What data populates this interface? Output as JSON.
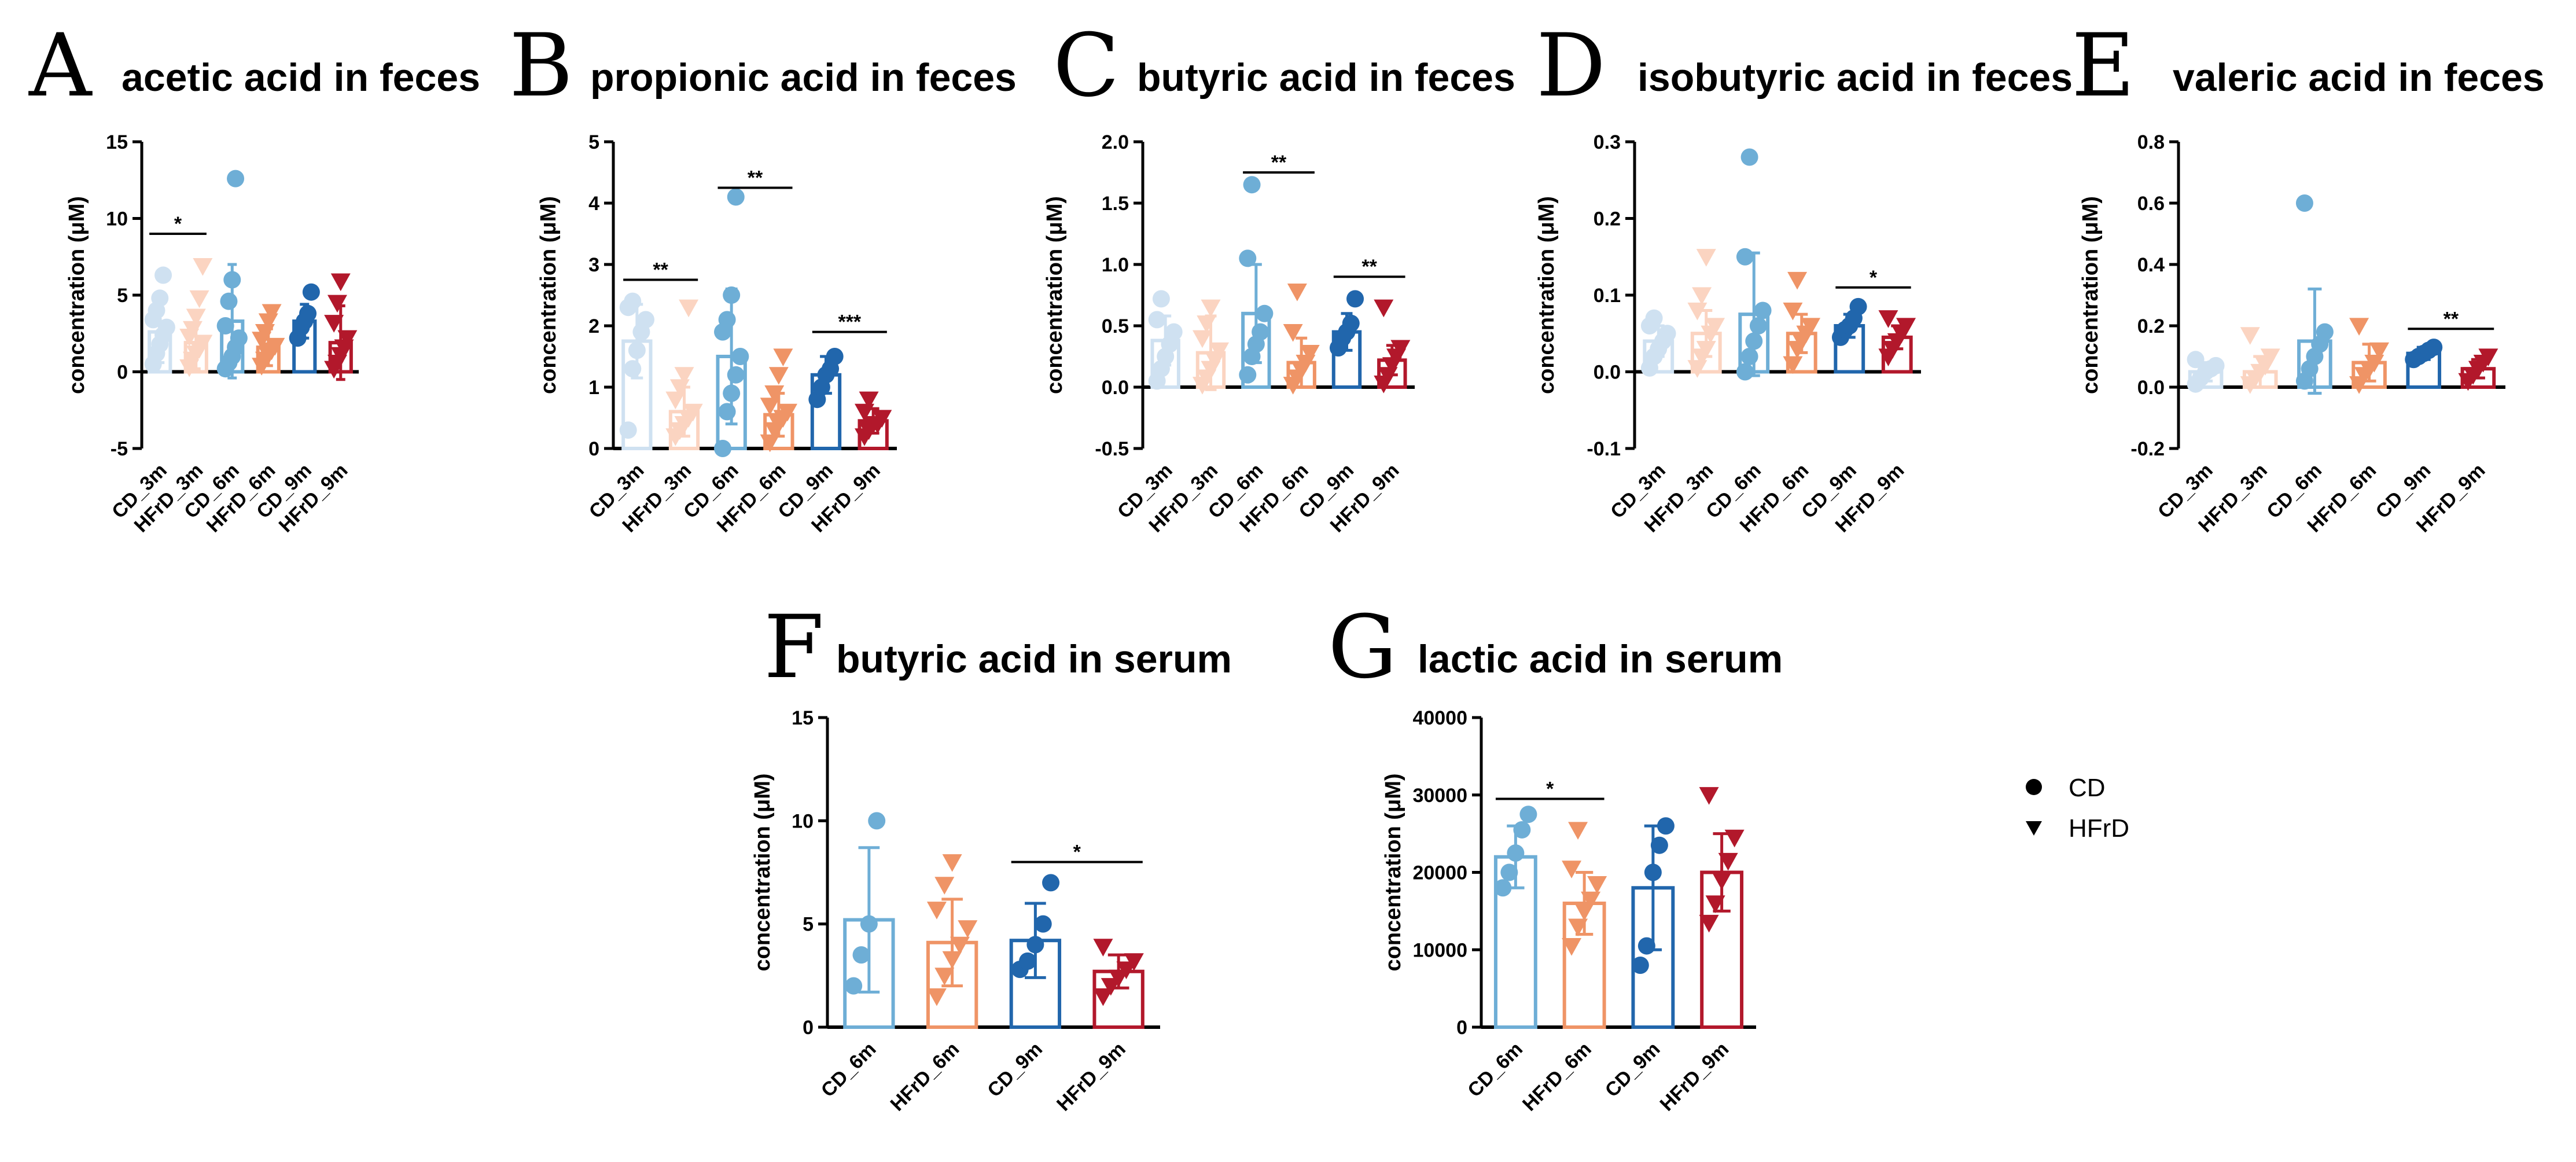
{
  "colors": {
    "CD_3m": "#cfe1f1",
    "HFrD_3m": "#fbd4c1",
    "CD_6m": "#6eaed6",
    "HFrD_6m": "#ef9466",
    "CD_9m": "#2166ac",
    "HFrD_9m": "#b2182b"
  },
  "legend": [
    {
      "label": "CD",
      "marker": "circle"
    },
    {
      "label": "HFrD",
      "marker": "triangle-down"
    }
  ],
  "chart_data": [
    {
      "type": "bar",
      "letter": "A",
      "title": "acetic acid in feces",
      "ylabel": "concentration (μM)",
      "ylim": [
        -5,
        15
      ],
      "yticks": [
        -5,
        0,
        5,
        10,
        15
      ],
      "ytick_labels": [
        "-5",
        "0",
        "5",
        "10",
        "15"
      ],
      "categories": [
        "CD_3m",
        "HFrD_3m",
        "CD_6m",
        "HFrD_6m",
        "CD_9m",
        "HFrD_9m"
      ],
      "values": [
        2.6,
        1.9,
        3.3,
        1.6,
        3.3,
        1.9
      ],
      "sd": [
        2.0,
        1.7,
        3.7,
        1.2,
        1.1,
        2.4
      ],
      "points": [
        [
          0.5,
          1.2,
          1.8,
          2.4,
          2.9,
          3.4,
          4.0,
          4.8,
          6.3
        ],
        [
          0.3,
          0.8,
          1.2,
          1.5,
          1.9,
          2.3,
          2.8,
          3.6,
          4.8,
          6.9
        ],
        [
          0.2,
          0.6,
          1.0,
          1.6,
          2.2,
          3.0,
          4.6,
          6.0,
          12.6
        ],
        [
          0.4,
          0.8,
          1.1,
          1.4,
          1.7,
          2.1,
          2.6,
          3.3,
          3.9
        ],
        [
          2.2,
          2.9,
          3.3,
          3.8,
          5.2
        ],
        [
          0.2,
          0.6,
          1.1,
          1.6,
          2.2,
          3.2,
          4.5,
          5.9
        ]
      ],
      "significance": [
        {
          "from": 0,
          "to": 1,
          "y": 9.0,
          "label": "*"
        }
      ]
    },
    {
      "type": "bar",
      "letter": "B",
      "title": "propionic acid in feces",
      "ylabel": "concentration (μM)",
      "ylim": [
        0,
        5
      ],
      "yticks": [
        0,
        1,
        2,
        3,
        4,
        5
      ],
      "ytick_labels": [
        "0",
        "1",
        "2",
        "3",
        "4",
        "5"
      ],
      "categories": [
        "CD_3m",
        "HFrD_3m",
        "CD_6m",
        "HFrD_6m",
        "CD_9m",
        "HFrD_9m"
      ],
      "values": [
        1.75,
        0.6,
        1.5,
        0.55,
        1.2,
        0.45
      ],
      "sd": [
        0.6,
        0.4,
        1.1,
        0.35,
        0.3,
        0.2
      ],
      "points": [
        [
          0.3,
          1.3,
          1.6,
          1.9,
          2.1,
          2.3,
          2.4
        ],
        [
          0.2,
          0.3,
          0.4,
          0.5,
          0.6,
          0.8,
          1.0,
          1.2,
          2.3
        ],
        [
          0.0,
          0.6,
          0.9,
          1.2,
          1.5,
          1.9,
          2.1,
          2.5,
          4.1
        ],
        [
          0.1,
          0.3,
          0.4,
          0.5,
          0.6,
          0.7,
          0.9,
          1.2,
          1.5
        ],
        [
          0.8,
          1.0,
          1.2,
          1.3,
          1.5
        ],
        [
          0.2,
          0.3,
          0.4,
          0.4,
          0.5,
          0.6,
          0.8
        ]
      ],
      "significance": [
        {
          "from": 0,
          "to": 1,
          "y": 2.75,
          "label": "**"
        },
        {
          "from": 2,
          "to": 3,
          "y": 4.25,
          "label": "**"
        },
        {
          "from": 4,
          "to": 5,
          "y": 1.9,
          "label": "***"
        }
      ]
    },
    {
      "type": "bar",
      "letter": "C",
      "title": "butyric acid in feces",
      "ylabel": "concentration (μM)",
      "ylim": [
        -0.5,
        2.0
      ],
      "yticks": [
        -0.5,
        0,
        0.5,
        1.0,
        1.5,
        2.0
      ],
      "ytick_labels": [
        "-0.5",
        "0.0",
        "0.5",
        "1.0",
        "1.5",
        "2.0"
      ],
      "categories": [
        "CD_3m",
        "HFrD_3m",
        "CD_6m",
        "HFrD_6m",
        "CD_9m",
        "HFrD_9m"
      ],
      "values": [
        0.38,
        0.28,
        0.6,
        0.2,
        0.45,
        0.22
      ],
      "sd": [
        0.2,
        0.3,
        0.4,
        0.2,
        0.15,
        0.12
      ],
      "points": [
        [
          0.05,
          0.15,
          0.25,
          0.35,
          0.45,
          0.55,
          0.72
        ],
        [
          0.02,
          0.08,
          0.15,
          0.22,
          0.3,
          0.4,
          0.52,
          0.65
        ],
        [
          0.1,
          0.25,
          0.35,
          0.45,
          0.6,
          1.05,
          1.65
        ],
        [
          0.02,
          0.08,
          0.14,
          0.2,
          0.28,
          0.45,
          0.78
        ],
        [
          0.32,
          0.4,
          0.45,
          0.52,
          0.72
        ],
        [
          0.03,
          0.1,
          0.18,
          0.25,
          0.32,
          0.65
        ]
      ],
      "significance": [
        {
          "from": 2,
          "to": 3,
          "y": 1.75,
          "label": "**"
        },
        {
          "from": 4,
          "to": 5,
          "y": 0.9,
          "label": "**"
        }
      ]
    },
    {
      "type": "bar",
      "letter": "D",
      "title": "isobutyric acid in feces",
      "ylabel": "concentration (μM)",
      "ylim": [
        -0.1,
        0.3
      ],
      "yticks": [
        -0.1,
        0,
        0.1,
        0.2,
        0.3
      ],
      "ytick_labels": [
        "-0.1",
        "0.0",
        "0.1",
        "0.2",
        "0.3"
      ],
      "categories": [
        "CD_3m",
        "HFrD_3m",
        "CD_6m",
        "HFrD_6m",
        "CD_9m",
        "HFrD_9m"
      ],
      "values": [
        0.04,
        0.05,
        0.075,
        0.05,
        0.06,
        0.045
      ],
      "sd": [
        0.02,
        0.03,
        0.08,
        0.025,
        0.015,
        0.015
      ],
      "points": [
        [
          0.005,
          0.02,
          0.03,
          0.04,
          0.05,
          0.06,
          0.07
        ],
        [
          0.005,
          0.02,
          0.03,
          0.05,
          0.06,
          0.08,
          0.1,
          0.15
        ],
        [
          0.0,
          0.02,
          0.04,
          0.06,
          0.08,
          0.15,
          0.28
        ],
        [
          0.01,
          0.03,
          0.04,
          0.05,
          0.06,
          0.08,
          0.12
        ],
        [
          0.045,
          0.055,
          0.06,
          0.07,
          0.085
        ],
        [
          0.02,
          0.03,
          0.04,
          0.05,
          0.06,
          0.07
        ]
      ],
      "significance": [
        {
          "from": 4,
          "to": 5,
          "y": 0.11,
          "label": "*"
        }
      ]
    },
    {
      "type": "bar",
      "letter": "E",
      "title": "valeric acid in feces",
      "ylabel": "concentration (μM)",
      "ylim": [
        -0.2,
        0.8
      ],
      "yticks": [
        -0.2,
        0,
        0.2,
        0.4,
        0.6,
        0.8
      ],
      "ytick_labels": [
        "-0.2",
        "0.0",
        "0.2",
        "0.4",
        "0.6",
        "0.8"
      ],
      "categories": [
        "CD_3m",
        "HFrD_3m",
        "CD_6m",
        "HFrD_6m",
        "CD_9m",
        "HFrD_9m"
      ],
      "values": [
        0.05,
        0.05,
        0.15,
        0.08,
        0.11,
        0.06
      ],
      "sd": [
        0.03,
        0.05,
        0.17,
        0.06,
        0.02,
        0.03
      ],
      "points": [
        [
          0.01,
          0.03,
          0.05,
          0.06,
          0.07,
          0.09
        ],
        [
          0.01,
          0.03,
          0.05,
          0.07,
          0.1,
          0.17
        ],
        [
          0.02,
          0.06,
          0.1,
          0.14,
          0.18,
          0.6
        ],
        [
          0.01,
          0.04,
          0.06,
          0.08,
          0.12,
          0.2
        ],
        [
          0.09,
          0.1,
          0.11,
          0.12,
          0.13
        ],
        [
          0.02,
          0.04,
          0.06,
          0.08,
          0.1
        ]
      ],
      "significance": [
        {
          "from": 4,
          "to": 5,
          "y": 0.19,
          "label": "**"
        }
      ]
    },
    {
      "type": "bar",
      "letter": "F",
      "title": "butyric acid in serum",
      "ylabel": "concentration (μM)",
      "ylim": [
        0,
        15
      ],
      "yticks": [
        0,
        5,
        10,
        15
      ],
      "ytick_labels": [
        "0",
        "5",
        "10",
        "15"
      ],
      "categories": [
        "CD_6m",
        "HFrD_6m",
        "CD_9m",
        "HFrD_9m"
      ],
      "values": [
        5.2,
        4.1,
        4.2,
        2.7
      ],
      "sd": [
        3.5,
        2.1,
        1.8,
        0.8
      ],
      "points": [
        [
          2.0,
          3.5,
          5.0,
          10.0
        ],
        [
          1.5,
          2.5,
          3.3,
          4.0,
          4.8,
          5.7,
          6.9,
          8.0
        ],
        [
          2.8,
          3.2,
          4.0,
          5.0,
          7.0
        ],
        [
          1.5,
          2.0,
          2.4,
          2.8,
          3.2,
          3.9
        ]
      ],
      "significance": [
        {
          "from": 2,
          "to": 3,
          "y": 8.0,
          "label": "*"
        }
      ]
    },
    {
      "type": "bar",
      "letter": "G",
      "title": "lactic acid in serum",
      "ylabel": "concentration (μM)",
      "ylim": [
        0,
        40000
      ],
      "yticks": [
        0,
        10000,
        20000,
        30000,
        40000
      ],
      "ytick_labels": [
        "0",
        "10000",
        "20000",
        "30000",
        "40000"
      ],
      "categories": [
        "CD_6m",
        "HFrD_6m",
        "CD_9m",
        "HFrD_9m"
      ],
      "values": [
        22000,
        16000,
        18000,
        20000
      ],
      "sd": [
        4000,
        4000,
        8000,
        5000
      ],
      "points": [
        [
          18000,
          20000,
          22500,
          25500,
          27500
        ],
        [
          10500,
          13000,
          15000,
          16500,
          18500,
          20500,
          25500
        ],
        [
          8000,
          10500,
          20000,
          23500,
          26000
        ],
        [
          13500,
          16000,
          19000,
          21500,
          24500,
          30000
        ]
      ],
      "significance": [
        {
          "from": 0,
          "to": 1,
          "y": 29500,
          "label": "*"
        }
      ]
    }
  ]
}
